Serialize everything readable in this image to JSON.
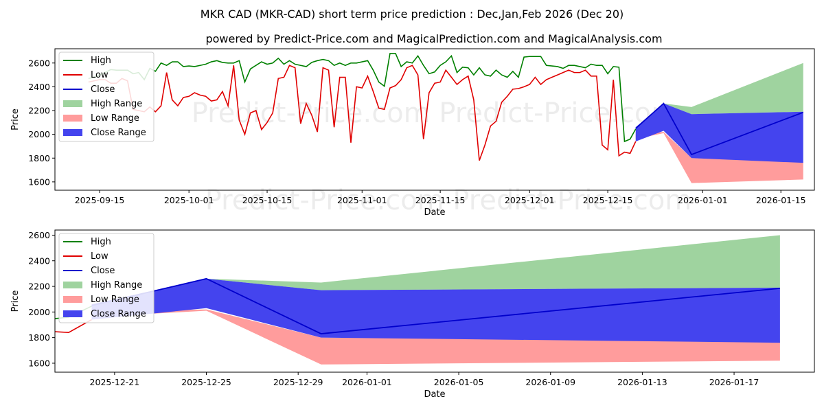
{
  "title": "MKR CAD (MKR-CAD) short term price prediction : Dec,Jan,Feb 2026 (Dec 20)",
  "subtitle": "powered by Predict-Price.com and MagicalPrediction.com and MagicalAnalysis.com",
  "watermark": "Predict-Price.com",
  "colors": {
    "high": "#008000",
    "low": "#e00000",
    "close": "#0000cc",
    "high_range": "#9fd39f",
    "low_range": "#ff9c9c",
    "close_range": "#4444ee"
  },
  "legend": [
    "High",
    "Low",
    "Close",
    "High Range",
    "Low Range",
    "Close Range"
  ],
  "chart_data": [
    {
      "type": "line",
      "xlabel": "Date",
      "ylabel": "Price",
      "xlim": [
        "2025-09-07",
        "2026-01-21"
      ],
      "ylim": [
        1530,
        2720
      ],
      "xticks": [
        "2025-09-15",
        "2025-10-01",
        "2025-10-15",
        "2025-11-01",
        "2025-11-15",
        "2025-12-01",
        "2025-12-15",
        "2026-01-01",
        "2026-01-15"
      ],
      "yticks": [
        1600,
        1800,
        2000,
        2200,
        2400,
        2600
      ],
      "history_start": "2025-09-13",
      "high": [
        2470,
        2480,
        2500,
        2520,
        2545,
        2540,
        2540,
        2540,
        2510,
        2520,
        2460,
        2555,
        2530,
        2600,
        2580,
        2610,
        2610,
        2570,
        2575,
        2570,
        2580,
        2590,
        2610,
        2620,
        2605,
        2600,
        2600,
        2620,
        2440,
        2550,
        2580,
        2610,
        2590,
        2600,
        2640,
        2590,
        2620,
        2590,
        2580,
        2570,
        2605,
        2620,
        2630,
        2620,
        2580,
        2600,
        2580,
        2600,
        2600,
        2610,
        2620,
        2540,
        2440,
        2405,
        2680,
        2680,
        2570,
        2610,
        2600,
        2660,
        2580,
        2510,
        2525,
        2580,
        2610,
        2660,
        2520,
        2565,
        2560,
        2500,
        2560,
        2500,
        2490,
        2540,
        2500,
        2480,
        2530,
        2480,
        2650,
        2655,
        2655,
        2655,
        2580,
        2575,
        2570,
        2555,
        2580,
        2580,
        2570,
        2560,
        2590,
        2580,
        2580,
        2510,
        2570,
        2565,
        1940,
        1960,
        2045
      ],
      "low": [
        2440,
        2450,
        2460,
        2460,
        2430,
        2430,
        2470,
        2450,
        2210,
        2200,
        2190,
        2230,
        2190,
        2240,
        2520,
        2290,
        2240,
        2310,
        2320,
        2350,
        2330,
        2320,
        2280,
        2290,
        2360,
        2240,
        2580,
        2120,
        2000,
        2180,
        2200,
        2040,
        2100,
        2180,
        2470,
        2480,
        2580,
        2560,
        2090,
        2260,
        2160,
        2020,
        2560,
        2540,
        2060,
        2480,
        2480,
        1930,
        2400,
        2390,
        2490,
        2360,
        2220,
        2210,
        2390,
        2410,
        2460,
        2560,
        2580,
        2500,
        1960,
        2350,
        2430,
        2440,
        2540,
        2480,
        2420,
        2460,
        2490,
        2290,
        1780,
        1910,
        2070,
        2110,
        2270,
        2320,
        2380,
        2385,
        2400,
        2420,
        2480,
        2420,
        2460,
        2480,
        2500,
        2520,
        2540,
        2520,
        2520,
        2540,
        2490,
        2490,
        1910,
        1870,
        2460,
        1820,
        1850,
        1840,
        1940
      ],
      "forecast": {
        "dates": [
          "2025-12-20",
          "2025-12-25",
          "2025-12-30",
          "2026-01-19"
        ],
        "high_upper": [
          2050,
          2260,
          2230,
          2600
        ],
        "high_lower": [
          2050,
          2260,
          2170,
          2190
        ],
        "low_upper": [
          2000,
          2020,
          1800,
          1770
        ],
        "low_lower": [
          1960,
          2010,
          1590,
          1620
        ],
        "close": [
          2050,
          2260,
          1830,
          2185
        ],
        "close_upper": [
          2060,
          2260,
          2170,
          2190
        ],
        "close_lower": [
          1940,
          2030,
          1800,
          1760
        ]
      }
    },
    {
      "type": "line",
      "xlabel": "Date",
      "ylabel": "Price",
      "xlim": [
        "2025-12-18.4",
        "2026-01-20.5"
      ],
      "ylim": [
        1530,
        2640
      ],
      "xticks": [
        "2025-12-21",
        "2025-12-25",
        "2025-12-29",
        "2026-01-01",
        "2026-01-05",
        "2026-01-09",
        "2026-01-13",
        "2026-01-17"
      ],
      "yticks": [
        1600,
        1800,
        2000,
        2200,
        2400,
        2600
      ]
    }
  ]
}
